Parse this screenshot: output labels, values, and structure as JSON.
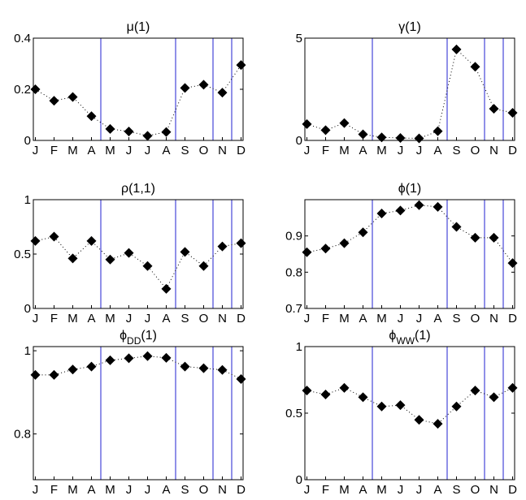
{
  "chart_data": [
    {
      "type": "scatter",
      "title": "μ(1)",
      "categories": [
        "J",
        "F",
        "M",
        "A",
        "M",
        "J",
        "J",
        "A",
        "S",
        "O",
        "N",
        "D"
      ],
      "values": [
        0.2,
        0.155,
        0.17,
        0.095,
        0.045,
        0.035,
        0.018,
        0.033,
        0.205,
        0.218,
        0.187,
        0.295
      ],
      "ylim": [
        0,
        0.4
      ],
      "yticks": [
        0,
        0.2,
        0.4
      ],
      "ytick_labels": [
        "0",
        "0.2",
        "0.4"
      ],
      "vlines": [
        3.5,
        7.5,
        9.5,
        10.5
      ]
    },
    {
      "type": "scatter",
      "title": "γ(1)",
      "categories": [
        "J",
        "F",
        "M",
        "A",
        "M",
        "J",
        "J",
        "A",
        "S",
        "O",
        "N",
        "D"
      ],
      "values": [
        0.8,
        0.5,
        0.85,
        0.3,
        0.15,
        0.12,
        0.1,
        0.45,
        4.45,
        3.6,
        1.55,
        1.35
      ],
      "ylim": [
        0,
        5
      ],
      "yticks": [
        0,
        5
      ],
      "ytick_labels": [
        "0",
        "5"
      ],
      "vlines": [
        3.5,
        7.5,
        9.5,
        10.5
      ]
    },
    {
      "type": "scatter",
      "title": "ρ(1,1)",
      "categories": [
        "J",
        "F",
        "M",
        "A",
        "M",
        "J",
        "J",
        "A",
        "S",
        "O",
        "N",
        "D"
      ],
      "values": [
        0.62,
        0.66,
        0.46,
        0.62,
        0.45,
        0.51,
        0.39,
        0.18,
        0.52,
        0.39,
        0.57,
        0.6
      ],
      "ylim": [
        0,
        1
      ],
      "yticks": [
        0,
        0.5,
        1
      ],
      "ytick_labels": [
        "0",
        "0.5",
        "1"
      ],
      "vlines": [
        3.5,
        7.5,
        9.5,
        10.5
      ]
    },
    {
      "type": "scatter",
      "title": "ϕ(1)",
      "categories": [
        "J",
        "F",
        "M",
        "A",
        "M",
        "J",
        "J",
        "A",
        "S",
        "O",
        "N",
        "D"
      ],
      "values": [
        0.855,
        0.865,
        0.88,
        0.91,
        0.962,
        0.97,
        0.985,
        0.98,
        0.925,
        0.895,
        0.895,
        0.825
      ],
      "ylim": [
        0.7,
        1.0
      ],
      "yticks": [
        0.7,
        0.8,
        0.9
      ],
      "ytick_labels": [
        "0.7",
        "0.8",
        "0.9"
      ],
      "vlines": [
        3.5,
        7.5,
        9.5,
        10.5
      ]
    },
    {
      "type": "scatter",
      "title": "ϕDD(1)",
      "title_parts": {
        "base": "ϕ",
        "sub": "DD",
        "suffix": "(1)"
      },
      "categories": [
        "J",
        "F",
        "M",
        "A",
        "M",
        "J",
        "J",
        "A",
        "S",
        "O",
        "N",
        "D"
      ],
      "values": [
        0.942,
        0.942,
        0.955,
        0.962,
        0.977,
        0.982,
        0.987,
        0.983,
        0.962,
        0.958,
        0.954,
        0.932
      ],
      "ylim": [
        0.69,
        1.01
      ],
      "yticks": [
        0.8,
        1
      ],
      "ytick_labels": [
        "0.8",
        "1"
      ],
      "vlines": [
        3.5,
        7.5,
        9.5,
        10.5
      ]
    },
    {
      "type": "scatter",
      "title": "ϕWW(1)",
      "title_parts": {
        "base": "ϕ",
        "sub": "WW",
        "suffix": "(1)"
      },
      "categories": [
        "J",
        "F",
        "M",
        "A",
        "M",
        "J",
        "J",
        "A",
        "S",
        "O",
        "N",
        "D"
      ],
      "values": [
        0.67,
        0.64,
        0.69,
        0.62,
        0.55,
        0.56,
        0.45,
        0.42,
        0.55,
        0.67,
        0.62,
        0.69
      ],
      "ylim": [
        0,
        1
      ],
      "yticks": [
        0,
        0.5,
        1
      ],
      "ytick_labels": [
        "0",
        "0.5",
        "1"
      ],
      "vlines": [
        3.5,
        7.5,
        9.5,
        10.5
      ]
    }
  ]
}
